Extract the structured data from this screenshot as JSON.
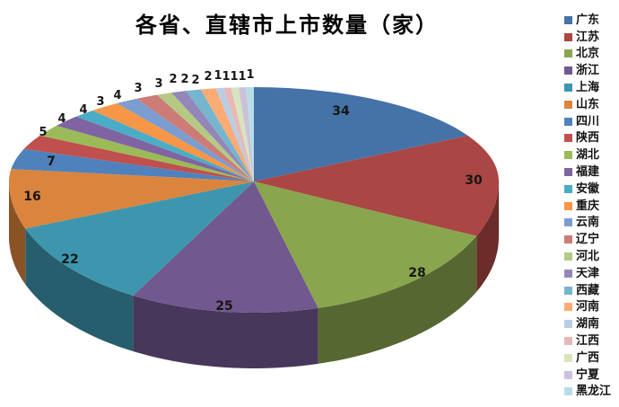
{
  "chart_data": {
    "type": "pie",
    "style": "3d",
    "title": "各省、直辖市上市数量（家）",
    "legend_position": "right",
    "background": "#FFFFFF",
    "categories": [
      "广东",
      "江苏",
      "北京",
      "浙江",
      "上海",
      "山东",
      "四川",
      "陕西",
      "湖北",
      "福建",
      "安徽",
      "重庆",
      "云南",
      "辽宁",
      "河北",
      "天津",
      "西藏",
      "河南",
      "湖南",
      "江西",
      "广西",
      "宁夏",
      "黑龙江"
    ],
    "values": [
      34,
      30,
      28,
      25,
      22,
      16,
      7,
      5,
      4,
      4,
      3,
      4,
      3,
      3,
      2,
      2,
      2,
      2,
      1,
      1,
      1,
      1,
      1
    ],
    "colors": [
      "#4572A7",
      "#AA4643",
      "#89A54E",
      "#71588F",
      "#3D96AE",
      "#DB843D",
      "#4F81BD",
      "#C0504D",
      "#9BBB59",
      "#8064A2",
      "#4BACC6",
      "#F79646",
      "#7B9DCF",
      "#CD7B77",
      "#B5C985",
      "#9487B8",
      "#76B5CE",
      "#FAAC74",
      "#B9CDE5",
      "#E6B9B8",
      "#D7E4BD",
      "#CCC1DA",
      "#B7DEE8"
    ],
    "data_labels_visible": true
  }
}
